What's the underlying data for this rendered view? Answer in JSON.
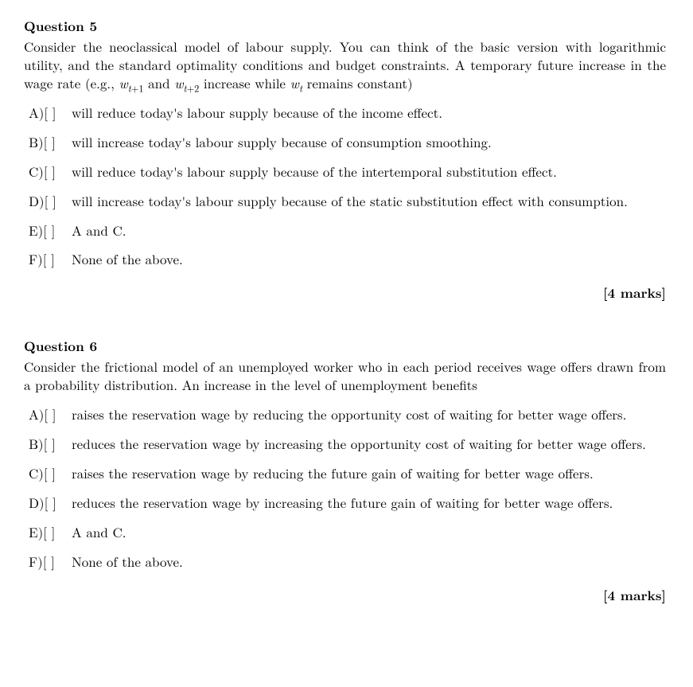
{
  "q5": {
    "title": "Question 5",
    "prompt_pre": "Consider the neoclassical model of labour supply. You can think of the basic version with logarithmic utility, and the standard optimality conditions and budget constraints. A temporary future increase in the wage rate (e.g., ",
    "w1_base": "w",
    "w1_sub_pre": "t",
    "w1_sub_op": "+1",
    "mid1": " and ",
    "w2_base": "w",
    "w2_sub_pre": "t",
    "w2_sub_op": "+2",
    "mid2": " increase while ",
    "w3_base": "w",
    "w3_sub": "t",
    "prompt_post": " remains constant)",
    "labels": {
      "A": "A)[  ]",
      "B": "B)[  ]",
      "C": "C)[  ]",
      "D": "D)[  ]",
      "E": "E)[  ]",
      "F": "F)[  ]"
    },
    "opts": {
      "A": "will reduce today's labour supply because of the income effect.",
      "B": "will increase today's labour supply because of consumption smoothing.",
      "C": "will reduce today's labour supply because of the intertemporal substitution effect.",
      "D": "will increase today's labour supply because of the static substitution effect with consumption.",
      "E": "A and C.",
      "F": "None of the above."
    },
    "marks": "[4 marks]"
  },
  "q6": {
    "title": "Question 6",
    "prompt": "Consider the frictional model of an unemployed worker who in each period receives wage offers drawn from a probability distribution. An increase in the level of unemployment benefits",
    "labels": {
      "A": "A)[  ]",
      "B": "B)[  ]",
      "C": "C)[  ]",
      "D": "D)[  ]",
      "E": "E)[  ]",
      "F": "F)[  ]"
    },
    "opts": {
      "A": "raises the reservation wage by reducing the opportunity cost of waiting for better wage offers.",
      "B": "reduces the reservation wage by increasing the opportunity cost of waiting for better wage offers.",
      "C": "raises the reservation wage by reducing the future gain of waiting for better wage offers.",
      "D": "reduces the reservation wage by increasing the future gain of waiting for better wage offers.",
      "E": "A and C.",
      "F": "None of the above."
    },
    "marks": "[4 marks]"
  }
}
